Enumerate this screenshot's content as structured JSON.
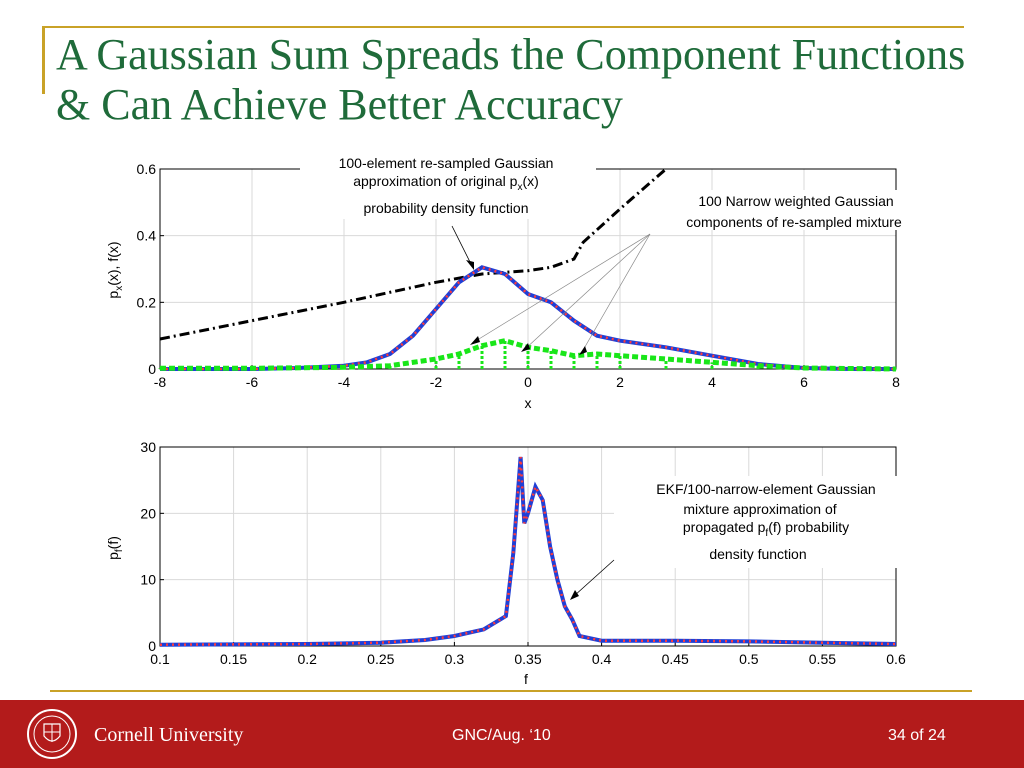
{
  "slide": {
    "title": "A Gaussian Sum Spreads the Component Functions & Can Achieve Better Accuracy"
  },
  "footer": {
    "university": "Cornell University",
    "center": "GNC/Aug. ‘10",
    "page": "34 of 24"
  },
  "colors": {
    "title": "#1f6b3a",
    "accent_gold": "#c9a227",
    "footer_bg": "#b31b1b",
    "blue": "#1f3fd6",
    "red_dotted": "#ff3b3b",
    "green": "#19e619",
    "black": "#000000"
  },
  "chart_data": [
    {
      "type": "line",
      "xlabel": "x",
      "ylabel_main": "p",
      "ylabel_sub": "x",
      "ylabel_rest": "(x), f(x)",
      "xlim": [
        -8,
        8
      ],
      "ylim": [
        0,
        0.6
      ],
      "xticks": [
        -8,
        -6,
        -4,
        -2,
        0,
        2,
        4,
        6,
        8
      ],
      "yticks": [
        0,
        0.2,
        0.4,
        0.6
      ],
      "grid": true,
      "series": [
        {
          "style": "dash-dot black",
          "x": [
            -8,
            -4,
            -2,
            -1,
            0,
            0.5,
            1,
            1.2,
            2,
            3
          ],
          "y": [
            0.09,
            0.2,
            0.26,
            0.285,
            0.295,
            0.305,
            0.33,
            0.38,
            0.48,
            0.6
          ]
        },
        {
          "style": "solid blue with red dotted overlay",
          "x": [
            -8,
            -6,
            -5,
            -4,
            -3.5,
            -3,
            -2.5,
            -2,
            -1.5,
            -1,
            -0.5,
            0,
            0.5,
            1,
            1.5,
            2,
            3,
            4,
            5,
            6,
            7,
            8
          ],
          "y": [
            0.0,
            0.0,
            0.003,
            0.01,
            0.02,
            0.045,
            0.1,
            0.18,
            0.26,
            0.305,
            0.285,
            0.225,
            0.2,
            0.145,
            0.1,
            0.085,
            0.065,
            0.04,
            0.015,
            0.003,
            0.0,
            0.0
          ]
        },
        {
          "style": "green dashed narrow components",
          "x": [
            -8,
            -6,
            -4,
            -3,
            -2,
            -1.5,
            -1,
            -0.5,
            0,
            0.5,
            1,
            1.5,
            2,
            3,
            4,
            5,
            6,
            8
          ],
          "y": [
            0.002,
            0.002,
            0.005,
            0.01,
            0.03,
            0.045,
            0.07,
            0.085,
            0.065,
            0.055,
            0.04,
            0.045,
            0.04,
            0.03,
            0.02,
            0.01,
            0.003,
            0.0
          ]
        }
      ],
      "annotations": [
        {
          "lines": [
            "100-element re-sampled Gaussian",
            "approximation of original p",
            "probability density function"
          ],
          "sub": "x",
          "after_sub": "(x)"
        },
        {
          "lines": [
            "100 Narrow weighted Gaussian",
            "components of re-sampled mixture"
          ]
        }
      ]
    },
    {
      "type": "line",
      "xlabel": "f",
      "ylabel_main": "p",
      "ylabel_sub": "f",
      "ylabel_rest": "(f)",
      "xlim": [
        0.1,
        0.6
      ],
      "ylim": [
        0,
        30
      ],
      "xticks": [
        0.1,
        0.15,
        0.2,
        0.25,
        0.3,
        0.35,
        0.4,
        0.45,
        0.5,
        0.55,
        0.6
      ],
      "ytick_labels": [
        "0",
        "10",
        "20",
        "30"
      ],
      "yticks": [
        0,
        10,
        20,
        30
      ],
      "grid": true,
      "series": [
        {
          "style": "solid blue with red dotted overlay",
          "x": [
            0.1,
            0.2,
            0.25,
            0.28,
            0.3,
            0.32,
            0.335,
            0.34,
            0.345,
            0.3475,
            0.35,
            0.355,
            0.36,
            0.365,
            0.37,
            0.375,
            0.38,
            0.385,
            0.4,
            0.45,
            0.5,
            0.55,
            0.6
          ],
          "y": [
            0.2,
            0.3,
            0.5,
            0.9,
            1.5,
            2.5,
            4.5,
            14,
            28.5,
            18.5,
            20,
            24,
            22,
            15,
            10,
            6,
            4,
            1.5,
            0.8,
            0.8,
            0.7,
            0.5,
            0.3
          ]
        }
      ],
      "annotations": [
        {
          "lines": [
            "EKF/100-narrow-element Gaussian",
            "mixture approximation of",
            "propagated p",
            "density function"
          ],
          "sub": "f",
          "after_sub": "(f) probability"
        }
      ]
    }
  ]
}
